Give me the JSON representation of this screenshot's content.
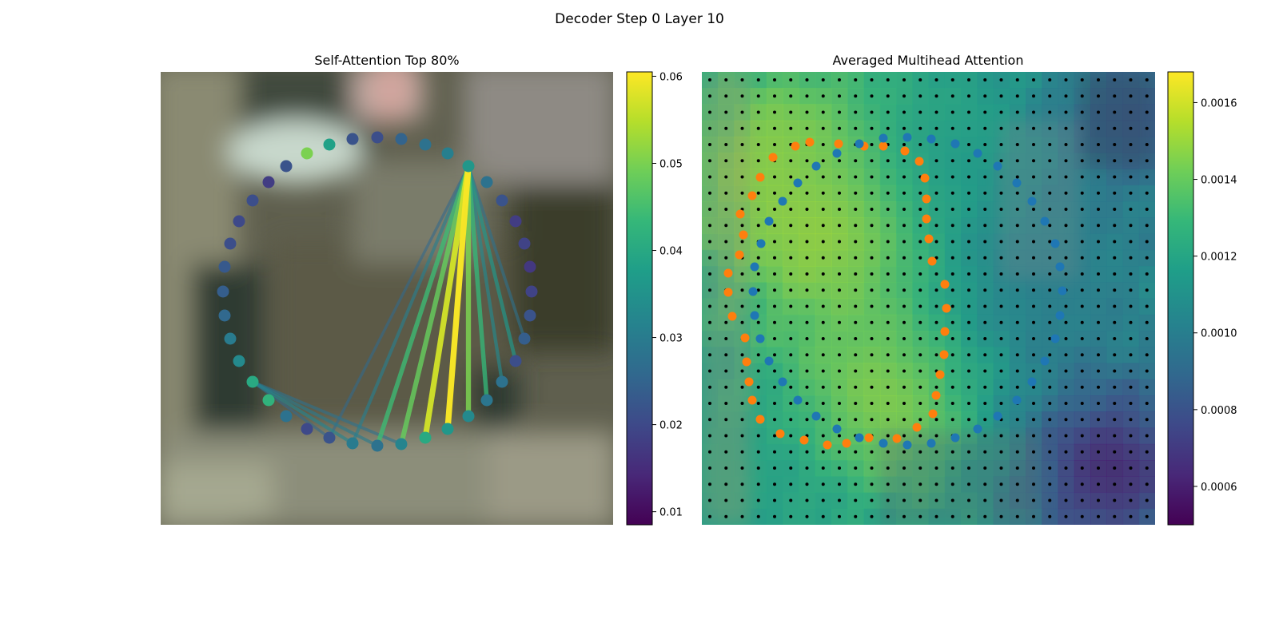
{
  "figure": {
    "suptitle": "Decoder Step 0 Layer 10"
  },
  "colormap": [
    "#440154",
    "#482878",
    "#3e4989",
    "#31688e",
    "#26828e",
    "#1f9e89",
    "#35b779",
    "#6ece58",
    "#b5de2b",
    "#fde725"
  ],
  "chart_data": [
    {
      "type": "scatter",
      "title": "Self-Attention Top 80%",
      "background": "blurred photograph (street scene)",
      "axes": "off",
      "colorbar": {
        "min": 0.0085,
        "max": 0.0605,
        "ticks": [
          0.01,
          0.02,
          0.03,
          0.04,
          0.05,
          0.06
        ],
        "tick_labels": [
          "0.01",
          "0.02",
          "0.03",
          "0.04",
          "0.05",
          "0.06"
        ]
      },
      "points": [
        [
          472,
          172,
          0.021
        ],
        [
          502,
          174,
          0.025
        ],
        [
          532,
          181,
          0.028
        ],
        [
          560,
          192,
          0.031
        ],
        [
          586,
          208,
          0.036
        ],
        [
          609,
          228,
          0.028
        ],
        [
          628,
          251,
          0.022
        ],
        [
          645,
          277,
          0.018
        ],
        [
          656,
          305,
          0.019
        ],
        [
          663,
          334,
          0.017
        ],
        [
          665,
          365,
          0.019
        ],
        [
          663,
          395,
          0.022
        ],
        [
          656,
          424,
          0.024
        ],
        [
          645,
          452,
          0.021
        ],
        [
          628,
          478,
          0.028
        ],
        [
          609,
          501,
          0.029
        ],
        [
          586,
          521,
          0.033
        ],
        [
          560,
          537,
          0.036
        ],
        [
          532,
          548,
          0.04
        ],
        [
          502,
          556,
          0.032
        ],
        [
          472,
          558,
          0.028
        ],
        [
          441,
          555,
          0.03
        ],
        [
          412,
          548,
          0.022
        ],
        [
          384,
          537,
          0.02
        ],
        [
          358,
          521,
          0.028
        ],
        [
          336,
          501,
          0.042
        ],
        [
          316,
          478,
          0.04
        ],
        [
          299,
          452,
          0.033
        ],
        [
          288,
          424,
          0.03
        ],
        [
          281,
          395,
          0.026
        ],
        [
          279,
          365,
          0.024
        ],
        [
          281,
          334,
          0.023
        ],
        [
          288,
          305,
          0.021
        ],
        [
          299,
          277,
          0.02
        ],
        [
          316,
          251,
          0.021
        ],
        [
          336,
          228,
          0.018
        ],
        [
          358,
          208,
          0.022
        ],
        [
          384,
          192,
          0.05
        ],
        [
          412,
          181,
          0.038
        ],
        [
          441,
          174,
          0.022
        ]
      ],
      "edges": [
        [
          4,
          17,
          0.06
        ],
        [
          4,
          18,
          0.057
        ],
        [
          4,
          16,
          0.05
        ],
        [
          4,
          15,
          0.043
        ],
        [
          4,
          19,
          0.048
        ],
        [
          4,
          20,
          0.044
        ],
        [
          4,
          13,
          0.036
        ],
        [
          4,
          14,
          0.033
        ],
        [
          4,
          12,
          0.028
        ],
        [
          4,
          21,
          0.031
        ],
        [
          4,
          22,
          0.026
        ],
        [
          26,
          21,
          0.032
        ],
        [
          26,
          20,
          0.03
        ],
        [
          26,
          19,
          0.028
        ],
        [
          26,
          22,
          0.026
        ]
      ]
    },
    {
      "type": "heatmap",
      "title": "Averaged Multihead Attention",
      "background": "attention heatmap over blurred photograph",
      "axes": "off",
      "colorbar": {
        "min": 0.0005,
        "max": 0.00168,
        "ticks": [
          0.0006,
          0.0008,
          0.001,
          0.0012,
          0.0014,
          0.0016
        ],
        "tick_labels": [
          "0.0006",
          "0.0008",
          "0.0010",
          "0.0012",
          "0.0014",
          "0.0016"
        ]
      },
      "grid": {
        "cols": 28,
        "rows": 28
      },
      "hotspots": [
        [
          0.3,
          0.3,
          0.22,
          0.0016
        ],
        [
          0.4,
          0.72,
          0.2,
          0.0015
        ],
        [
          0.18,
          0.2,
          0.15,
          0.0015
        ],
        [
          0.55,
          0.15,
          0.15,
          0.0012
        ],
        [
          0.78,
          0.45,
          0.18,
          0.001
        ],
        [
          0.9,
          0.88,
          0.14,
          0.0006
        ],
        [
          0.95,
          0.1,
          0.12,
          0.0008
        ],
        [
          0.05,
          0.9,
          0.16,
          0.0012
        ]
      ],
      "series": [
        {
          "color": "#ff7f0e",
          "points": [
            [
              1013,
              178
            ],
            [
              1049,
              180
            ],
            [
              1081,
              183
            ],
            [
              1105,
              183
            ],
            [
              1132,
              189
            ],
            [
              1150,
              202
            ],
            [
              1157,
              223
            ],
            [
              1159,
              249
            ],
            [
              1159,
              274
            ],
            [
              1162,
              299
            ],
            [
              1166,
              327
            ],
            [
              1182,
              356
            ],
            [
              1184,
              386
            ],
            [
              1182,
              415
            ],
            [
              1181,
              444
            ],
            [
              1176,
              469
            ],
            [
              1171,
              495
            ],
            [
              1167,
              518
            ],
            [
              1147,
              535
            ],
            [
              1122,
              549
            ],
            [
              1087,
              548
            ],
            [
              1059,
              555
            ],
            [
              1035,
              557
            ],
            [
              1006,
              551
            ],
            [
              976,
              543
            ],
            [
              951,
              525
            ],
            [
              941,
              501
            ],
            [
              937,
              478
            ],
            [
              934,
              453
            ],
            [
              932,
              423
            ],
            [
              916,
              396
            ],
            [
              911,
              366
            ],
            [
              911,
              342
            ],
            [
              925,
              319
            ],
            [
              930,
              294
            ],
            [
              926,
              268
            ],
            [
              941,
              245
            ],
            [
              951,
              222
            ],
            [
              967,
              197
            ],
            [
              995,
              183
            ]
          ]
        },
        {
          "color": "#1f77b4",
          "points": [
            [
              1105,
              173
            ],
            [
              1135,
              172
            ],
            [
              1165,
              174
            ],
            [
              1195,
              180
            ],
            [
              1223,
              192
            ],
            [
              1248,
              208
            ],
            [
              1272,
              229
            ],
            [
              1291,
              252
            ],
            [
              1307,
              277
            ],
            [
              1320,
              305
            ],
            [
              1326,
              334
            ],
            [
              1329,
              364
            ],
            [
              1326,
              395
            ],
            [
              1320,
              424
            ],
            [
              1307,
              452
            ],
            [
              1291,
              478
            ],
            [
              1272,
              501
            ],
            [
              1248,
              521
            ],
            [
              1223,
              537
            ],
            [
              1195,
              548
            ],
            [
              1165,
              555
            ],
            [
              1135,
              557
            ],
            [
              1105,
              555
            ],
            [
              1075,
              548
            ],
            [
              1047,
              537
            ],
            [
              1021,
              521
            ],
            [
              998,
              501
            ],
            [
              979,
              478
            ],
            [
              962,
              452
            ],
            [
              951,
              424
            ],
            [
              944,
              395
            ],
            [
              942,
              365
            ],
            [
              944,
              334
            ],
            [
              952,
              305
            ],
            [
              962,
              277
            ],
            [
              979,
              252
            ],
            [
              998,
              229
            ],
            [
              1021,
              208
            ],
            [
              1047,
              192
            ],
            [
              1075,
              180
            ]
          ]
        }
      ]
    }
  ]
}
